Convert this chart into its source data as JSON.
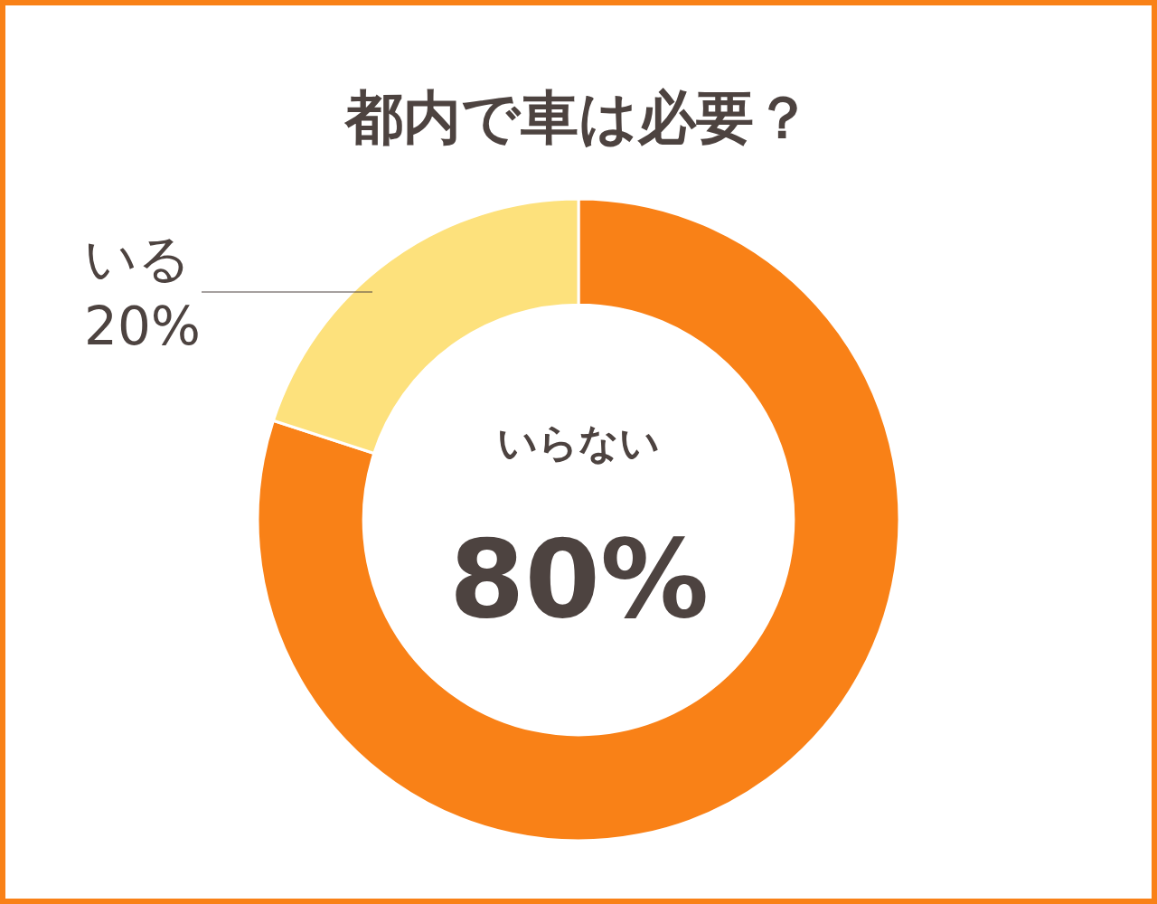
{
  "chart_data": {
    "type": "donut",
    "title": "都内で車は必要？",
    "categories": [
      "いらない",
      "いる"
    ],
    "values": [
      80,
      20
    ],
    "value_labels": [
      "80%",
      "20%"
    ],
    "colors": [
      "#f98117",
      "#fde17c"
    ]
  }
}
